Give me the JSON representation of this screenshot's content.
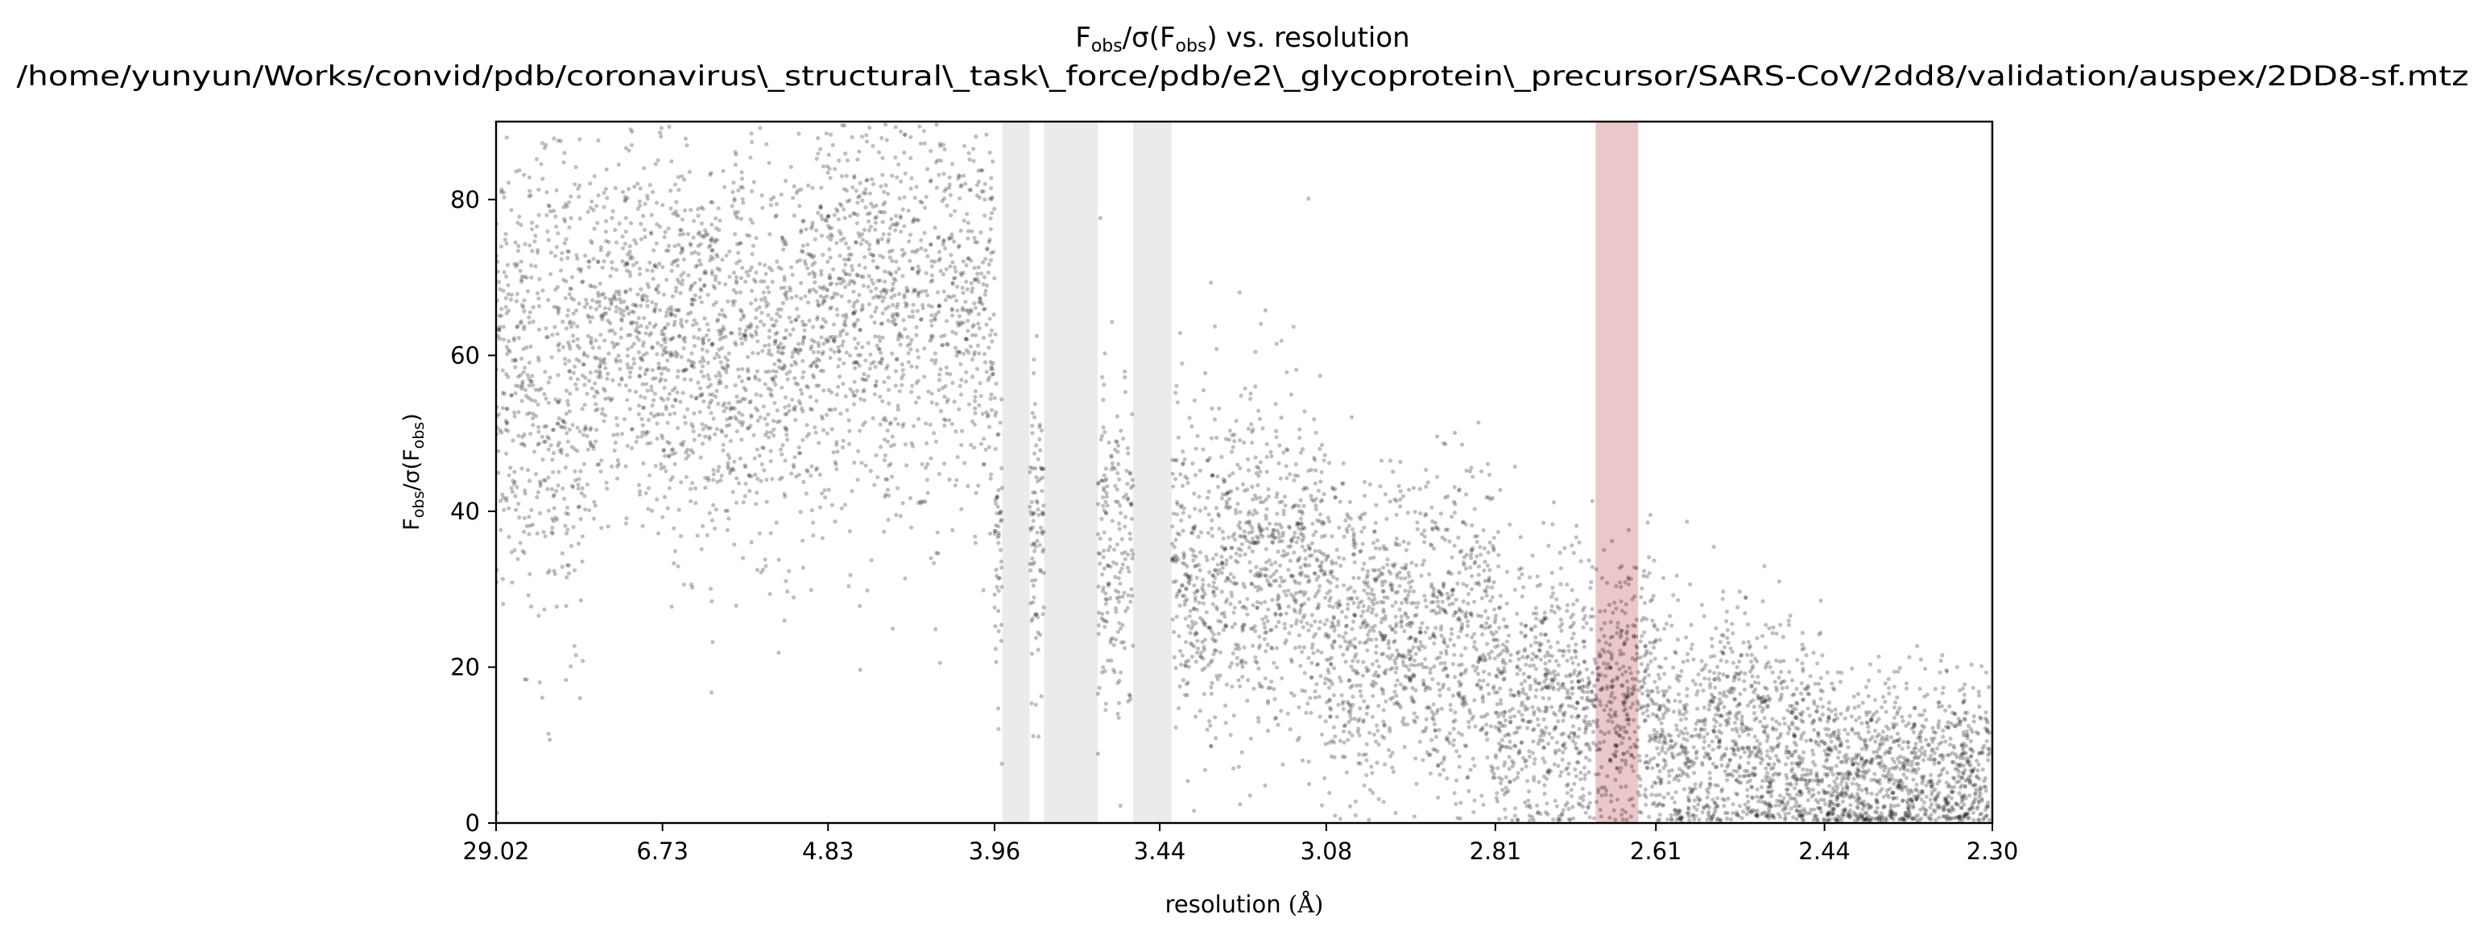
{
  "figure": {
    "title_line1_prefix": "F",
    "title_line1_sub1": "obs",
    "title_line1_mid": "/σ(F",
    "title_line1_sub2": "obs",
    "title_line1_suffix": ") vs. resolution",
    "title_line2": "/home/yunyun/Works/convid/pdb/coronavirus\\_structural\\_task\\_force/pdb/e2\\_glycoprotein\\_precursor/SARS-CoV/2dd8/validation/auspex/2DD8-sf.mtz"
  },
  "chart_data": {
    "type": "scatter",
    "title": "Fobs/σ(Fobs) vs. resolution",
    "subtitle": "/home/yunyun/Works/convid/pdb/coronavirus\\_structural\\_task\\_force/pdb/e2\\_glycoprotein\\_precursor/SARS-CoV/2dd8/validation/auspex/2DD8-sf.mtz",
    "xlabel": "resolution (Å)",
    "xlabel_text": "resolution ",
    "xlabel_unit": "(Å)",
    "ylabel": "Fobs/σ(Fobs)",
    "ylabel_parts": {
      "prefix": "F",
      "sub1": "obs",
      "mid": "/σ(F",
      "sub2": "obs",
      "suffix": ")"
    },
    "x_scale": "reciprocal-squared (1/d²)",
    "xlim_resolution": [
      29.02,
      2.3
    ],
    "ylim": [
      0,
      90
    ],
    "x_ticks": [
      "29.02",
      "6.73",
      "4.83",
      "3.96",
      "3.44",
      "3.08",
      "2.81",
      "2.61",
      "2.44",
      "2.30"
    ],
    "x_tick_values": [
      29.02,
      6.73,
      4.83,
      3.96,
      3.44,
      3.08,
      2.81,
      2.61,
      2.44,
      2.3
    ],
    "y_ticks": [
      "0",
      "20",
      "40",
      "60",
      "80"
    ],
    "y_tick_values": [
      0,
      20,
      40,
      60,
      80
    ],
    "grid": false,
    "legend": "none",
    "point_color": "#000000",
    "point_alpha": 0.25,
    "highlight_bands": [
      {
        "kind": "gap",
        "from": 3.93,
        "to": 3.83,
        "color": "#ebebeb"
      },
      {
        "kind": "gap",
        "from": 3.78,
        "to": 3.61,
        "color": "#ebebeb"
      },
      {
        "kind": "gap",
        "from": 3.51,
        "to": 3.41,
        "color": "#ebebeb"
      },
      {
        "kind": "ice-ring",
        "from": 2.68,
        "to": 2.63,
        "color": "#ebc7c9"
      },
      {
        "kind": "gap",
        "from": 2.302,
        "to": 2.3,
        "color": "#ebebeb"
      }
    ],
    "series": [
      {
        "shells": [
          {
            "from": 29.02,
            "to": 9.0,
            "center": 57,
            "spread": 16
          },
          {
            "from": 9.0,
            "to": 6.0,
            "center": 62,
            "spread": 12
          },
          {
            "from": 6.0,
            "to": 4.9,
            "center": 60,
            "spread": 13
          },
          {
            "from": 4.9,
            "to": 3.96,
            "center": 67,
            "spread": 14
          },
          {
            "from": 3.96,
            "to": 3.44,
            "center": 36,
            "spread": 11
          },
          {
            "from": 3.44,
            "to": 3.08,
            "center": 33,
            "spread": 11
          },
          {
            "from": 3.08,
            "to": 2.81,
            "center": 24,
            "spread": 10
          },
          {
            "from": 2.81,
            "to": 2.61,
            "center": 16,
            "spread": 9
          },
          {
            "from": 2.61,
            "to": 2.44,
            "center": 10,
            "spread": 8
          },
          {
            "from": 2.44,
            "to": 2.3,
            "center": 6,
            "spread": 6
          }
        ]
      }
    ]
  }
}
